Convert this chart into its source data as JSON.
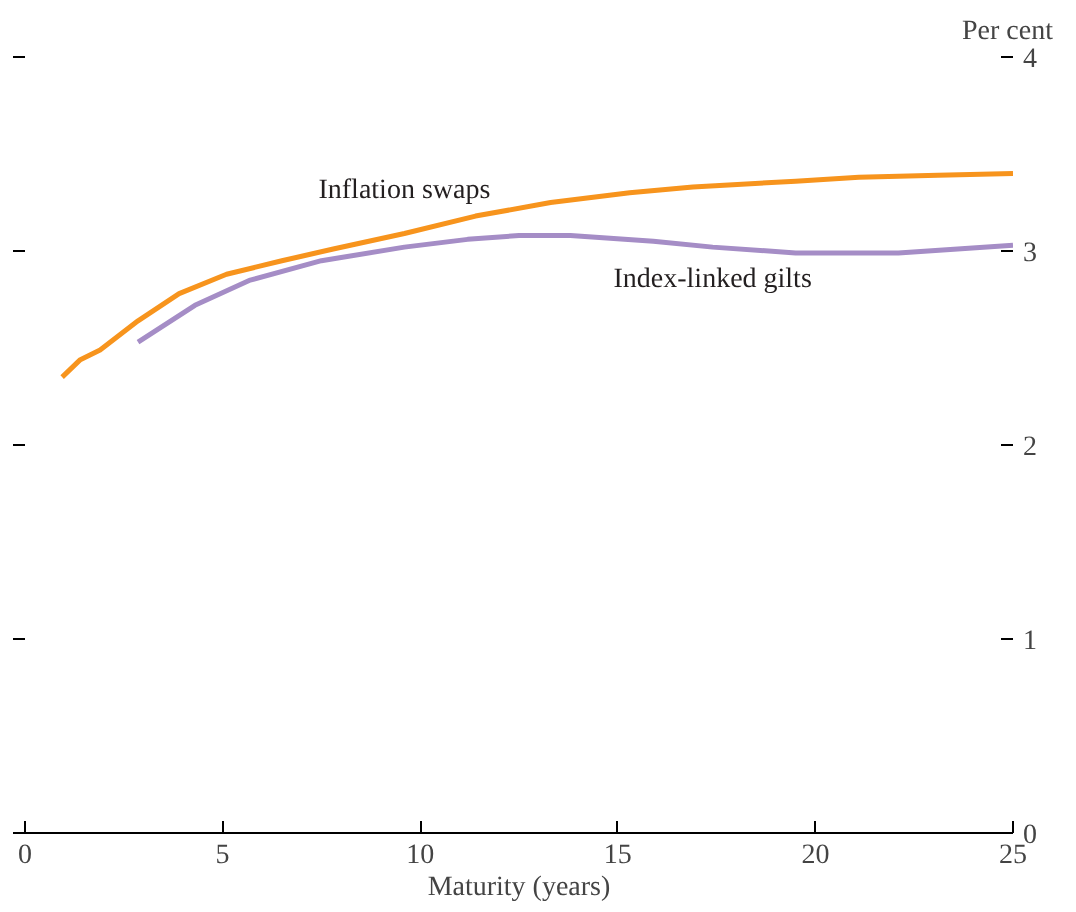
{
  "chart_data": {
    "type": "line",
    "xlabel": "Maturity (years)",
    "ylabel": "Per cent",
    "xlim": [
      0,
      25
    ],
    "xticks": [
      0,
      5,
      10,
      15,
      20,
      25
    ],
    "ylim": [
      0,
      4
    ],
    "yticks": [
      0,
      1,
      2,
      3,
      4
    ],
    "grid": false,
    "marker": "none",
    "line_style": "solid",
    "series": [
      {
        "name": "Inflation swaps",
        "color": "#f7941d",
        "x": [
          0.94,
          1.4,
          1.9,
          2.86,
          3.9,
          5.1,
          6.5,
          7.8,
          9.6,
          11.4,
          13.3,
          15.3,
          16.9,
          19.5,
          21.1,
          23.1,
          25
        ],
        "values": [
          2.35,
          2.44,
          2.49,
          2.64,
          2.78,
          2.88,
          2.95,
          3.01,
          3.09,
          3.18,
          3.25,
          3.3,
          3.33,
          3.36,
          3.38,
          3.39,
          3.4
        ]
      },
      {
        "name": "Index-linked gilts",
        "color": "#a58dc6",
        "x": [
          2.86,
          4.3,
          5.7,
          7.5,
          9.6,
          11.2,
          12.5,
          13.8,
          15.9,
          17.4,
          19.5,
          22.1,
          23.6,
          25
        ],
        "values": [
          2.53,
          2.72,
          2.85,
          2.95,
          3.02,
          3.06,
          3.08,
          3.08,
          3.05,
          3.02,
          2.99,
          2.99,
          3.01,
          3.03
        ]
      }
    ]
  }
}
